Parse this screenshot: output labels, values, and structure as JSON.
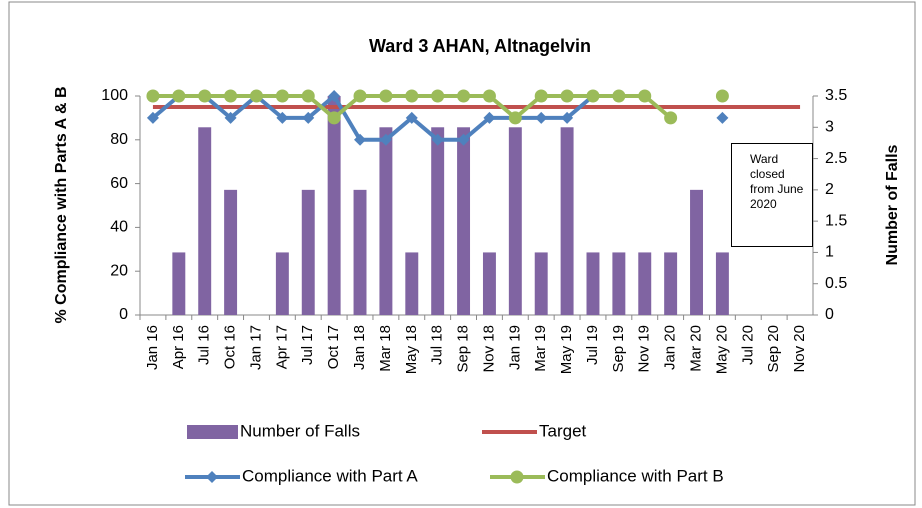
{
  "chart_data": {
    "type": "bar-line",
    "title": "Ward 3 AHAN, Altnagelvin",
    "y_label": "% Compliance with Parts A & B",
    "y2_label": "Number of Falls",
    "annotation": "Ward closed from June 2020",
    "categories": [
      "Jan 16",
      "Apr 16",
      "Jul 16",
      "Oct 16",
      "Jan 17",
      "Apr 17",
      "Jul 17",
      "Oct 17",
      "Jan 18",
      "Mar 18",
      "May 18",
      "Jul 18",
      "Sep 18",
      "Nov 18",
      "Jan 19",
      "Mar 19",
      "May 19",
      "Jul 19",
      "Sep 19",
      "Nov 19",
      "Jan 20",
      "Mar 20",
      "May 20",
      "Jul 20",
      "Sep 20",
      "Nov 20"
    ],
    "ylim": [
      0,
      100
    ],
    "yticks": [
      0,
      20,
      40,
      60,
      80,
      100
    ],
    "y2lim": [
      0,
      3.5
    ],
    "y2ticks": [
      0,
      0.5,
      1,
      1.5,
      2,
      2.5,
      3,
      3.5
    ],
    "series": [
      {
        "name": "Number of Falls",
        "type": "bar",
        "axis": "y2",
        "color": "#8064a2",
        "values": [
          0,
          1,
          3,
          2,
          0,
          1,
          2,
          3.5,
          2,
          3,
          1,
          3,
          3,
          1,
          3,
          1,
          3,
          1,
          1,
          1,
          1,
          2,
          1,
          0,
          0,
          0
        ]
      },
      {
        "name": "Target",
        "type": "line",
        "color": "#c0504d",
        "values": [
          95,
          95,
          95,
          95,
          95,
          95,
          95,
          95,
          95,
          95,
          95,
          95,
          95,
          95,
          95,
          95,
          95,
          95,
          95,
          95,
          95,
          95,
          95,
          95,
          95,
          95
        ]
      },
      {
        "name": "Compliance with Part A",
        "type": "line",
        "marker": "diamond",
        "color": "#4f81bd",
        "values": [
          90,
          100,
          100,
          90,
          100,
          90,
          90,
          100,
          80,
          80,
          90,
          80,
          80,
          90,
          90,
          90,
          90,
          100,
          100,
          100,
          null,
          null,
          90,
          null,
          null,
          null
        ]
      },
      {
        "name": "Compliance with Part B",
        "type": "line",
        "marker": "circle",
        "color": "#9bbb59",
        "values": [
          100,
          100,
          100,
          100,
          100,
          100,
          100,
          90,
          100,
          100,
          100,
          100,
          100,
          100,
          90,
          100,
          100,
          100,
          100,
          100,
          90,
          null,
          100,
          null,
          null,
          null
        ]
      }
    ]
  }
}
